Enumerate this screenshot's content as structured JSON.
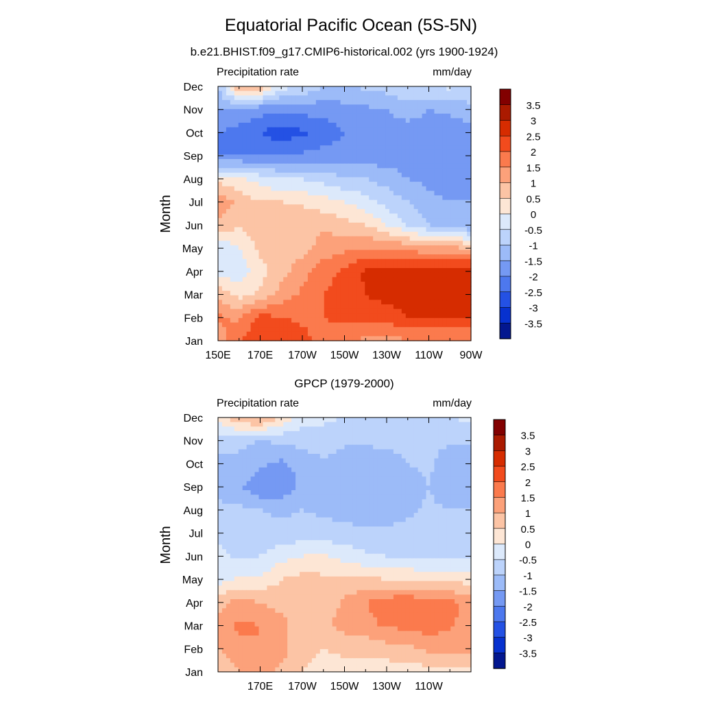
{
  "chart_data": [
    {
      "type": "heatmap",
      "title": "Equatorial Pacific Ocean (5S-5N)",
      "subtitle": "b.e21.BHIST.f09_g17.CMIP6-historical.002 (yrs 1900-1924)",
      "left_label": "Precipitation rate",
      "right_label": "mm/day",
      "ylabel": "Month",
      "xlabel": "",
      "x_tick_labels": [
        "150E",
        "170E",
        "170W",
        "150W",
        "130W",
        "110W",
        "90W"
      ],
      "x_tick_values": [
        150,
        170,
        190,
        210,
        230,
        250,
        270
      ],
      "y_tick_labels": [
        "Jan",
        "Feb",
        "Mar",
        "Apr",
        "May",
        "Jun",
        "Jul",
        "Aug",
        "Sep",
        "Oct",
        "Nov",
        "Dec"
      ],
      "xlim": [
        150,
        270
      ],
      "ylim": [
        1,
        12
      ],
      "x": [
        150,
        160,
        170,
        180,
        190,
        200,
        210,
        220,
        230,
        240,
        250,
        260,
        270
      ],
      "y": [
        1,
        2,
        3,
        4,
        5,
        6,
        7,
        8,
        9,
        10,
        11,
        12
      ],
      "z": [
        [
          1.2,
          2.0,
          2.5,
          2.5,
          2.2,
          1.7,
          1.5,
          1.4,
          1.4,
          1.4,
          1.5,
          1.5,
          1.5
        ],
        [
          1.6,
          1.4,
          2.2,
          2.0,
          1.9,
          2.0,
          2.2,
          2.2,
          2.2,
          2.5,
          2.5,
          2.5,
          2.5
        ],
        [
          0.8,
          0.3,
          0.6,
          1.2,
          1.6,
          2.0,
          2.2,
          2.5,
          2.7,
          2.8,
          2.9,
          3.0,
          3.0
        ],
        [
          -0.2,
          -0.3,
          0.3,
          0.8,
          1.3,
          1.8,
          2.1,
          2.6,
          2.7,
          2.7,
          2.8,
          2.8,
          2.8
        ],
        [
          -0.5,
          0.0,
          0.6,
          0.8,
          0.8,
          1.2,
          1.4,
          1.5,
          1.5,
          1.3,
          1.2,
          1.1,
          1.0
        ],
        [
          0.8,
          0.6,
          0.7,
          0.7,
          0.9,
          0.9,
          0.7,
          0.5,
          0.0,
          -0.5,
          -1.0,
          -1.3,
          -1.5
        ],
        [
          1.5,
          0.8,
          0.5,
          0.5,
          0.4,
          0.2,
          0.0,
          -0.3,
          -0.7,
          -1.0,
          -1.4,
          -1.5,
          -1.5
        ],
        [
          0.3,
          0.1,
          -0.2,
          -0.5,
          -0.5,
          -0.7,
          -0.9,
          -1.0,
          -1.2,
          -1.5,
          -1.6,
          -1.7,
          -1.8
        ],
        [
          -2.0,
          -2.0,
          -2.0,
          -2.0,
          -1.9,
          -1.8,
          -1.8,
          -1.8,
          -1.8,
          -1.8,
          -1.8,
          -1.8,
          -1.8
        ],
        [
          -2.0,
          -2.2,
          -2.5,
          -2.8,
          -2.6,
          -2.3,
          -2.0,
          -1.8,
          -1.8,
          -1.8,
          -1.8,
          -1.8,
          -1.7
        ],
        [
          -1.5,
          -1.6,
          -1.8,
          -1.8,
          -1.8,
          -1.8,
          -1.7,
          -1.6,
          -1.5,
          -1.2,
          -1.5,
          -1.4,
          -1.2
        ],
        [
          -1.0,
          1.0,
          0.8,
          -0.3,
          -0.6,
          -1.0,
          -1.0,
          -0.9,
          -0.8,
          -0.6,
          -0.4,
          -0.4,
          -0.5
        ]
      ],
      "colorbar": {
        "labels": [
          "3.5",
          "3",
          "2.5",
          "2",
          "1.5",
          "1",
          "0.5",
          "0",
          "-0.5",
          "-1",
          "-1.5",
          "-2",
          "-2.5",
          "-3",
          "-3.5"
        ],
        "colors": [
          "#820000",
          "#aa1a00",
          "#d62c00",
          "#f24b1d",
          "#fb7a4d",
          "#fca17a",
          "#fcc4a5",
          "#fde6d5",
          "#dce9fb",
          "#bcd3fb",
          "#9cbbf8",
          "#7599f3",
          "#4d78ee",
          "#2451e4",
          "#0731cf",
          "#03178f"
        ]
      }
    },
    {
      "type": "heatmap",
      "title": "GPCP (1979-2000)",
      "left_label": "Precipitation rate",
      "right_label": "mm/day",
      "ylabel": "Month",
      "xlabel": "",
      "x_tick_labels": [
        "170E",
        "170W",
        "150W",
        "130W",
        "110W"
      ],
      "x_tick_values": [
        170,
        190,
        210,
        230,
        250
      ],
      "y_tick_labels": [
        "Jan",
        "Feb",
        "Mar",
        "Apr",
        "May",
        "Jun",
        "Jul",
        "Aug",
        "Sep",
        "Oct",
        "Nov",
        "Dec"
      ],
      "xlim": [
        150,
        270
      ],
      "ylim": [
        1,
        12
      ],
      "x": [
        150,
        160,
        170,
        180,
        190,
        200,
        210,
        220,
        230,
        240,
        250,
        260,
        270
      ],
      "y": [
        1,
        2,
        3,
        4,
        5,
        6,
        7,
        8,
        9,
        10,
        11,
        12
      ],
      "z": [
        [
          0.6,
          1.0,
          1.2,
          0.9,
          0.5,
          0.4,
          0.3,
          0.3,
          0.2,
          0.2,
          0.3,
          0.3,
          0.3
        ],
        [
          1.0,
          1.4,
          1.5,
          1.2,
          0.6,
          0.5,
          0.6,
          0.7,
          0.8,
          0.9,
          1.1,
          1.1,
          1.2
        ],
        [
          1.2,
          1.6,
          1.5,
          1.2,
          0.6,
          0.9,
          1.2,
          1.3,
          1.6,
          1.6,
          1.8,
          1.6,
          1.2
        ],
        [
          0.8,
          1.2,
          1.0,
          0.8,
          0.6,
          0.6,
          1.1,
          1.5,
          1.8,
          1.9,
          1.8,
          1.6,
          1.4
        ],
        [
          -0.3,
          0.1,
          0.1,
          0.5,
          0.7,
          0.6,
          0.6,
          0.6,
          0.5,
          0.4,
          0.3,
          0.3,
          0.3
        ],
        [
          -0.4,
          -0.6,
          -0.5,
          -0.2,
          0.0,
          0.1,
          -0.2,
          -0.4,
          -0.5,
          -0.5,
          -0.5,
          -0.5,
          -0.5
        ],
        [
          -0.6,
          -0.7,
          -0.8,
          -0.8,
          -0.8,
          -0.8,
          -0.8,
          -0.9,
          -0.9,
          -0.8,
          -0.8,
          -0.8,
          -0.8
        ],
        [
          -0.8,
          -0.9,
          -1.0,
          -1.1,
          -1.0,
          -1.1,
          -1.2,
          -1.3,
          -1.3,
          -1.1,
          -0.9,
          -1.0,
          -1.0
        ],
        [
          -1.3,
          -1.4,
          -1.9,
          -1.9,
          -1.4,
          -1.2,
          -1.5,
          -1.5,
          -1.5,
          -1.3,
          -1.0,
          -1.4,
          -1.4
        ],
        [
          -1.2,
          -1.1,
          -1.4,
          -1.6,
          -1.3,
          -1.1,
          -1.3,
          -1.4,
          -1.3,
          -1.0,
          -0.9,
          -1.3,
          -1.3
        ],
        [
          -0.8,
          -0.9,
          -1.0,
          -0.9,
          -0.8,
          -0.7,
          -0.9,
          -0.9,
          -0.8,
          -0.8,
          -0.9,
          -0.9,
          -0.9
        ],
        [
          0.2,
          1.0,
          1.2,
          0.4,
          -0.3,
          -0.4,
          -0.5,
          -0.5,
          -0.6,
          -0.7,
          -0.6,
          -0.5,
          -0.4
        ]
      ],
      "colorbar": {
        "labels": [
          "3.5",
          "3",
          "2.5",
          "2",
          "1.5",
          "1",
          "0.5",
          "0",
          "-0.5",
          "-1",
          "-1.5",
          "-2",
          "-2.5",
          "-3",
          "-3.5"
        ],
        "colors": [
          "#820000",
          "#aa1a00",
          "#d62c00",
          "#f24b1d",
          "#fb7a4d",
          "#fca17a",
          "#fcc4a5",
          "#fde6d5",
          "#dce9fb",
          "#bcd3fb",
          "#9cbbf8",
          "#7599f3",
          "#4d78ee",
          "#2451e4",
          "#0731cf",
          "#03178f"
        ]
      }
    }
  ]
}
